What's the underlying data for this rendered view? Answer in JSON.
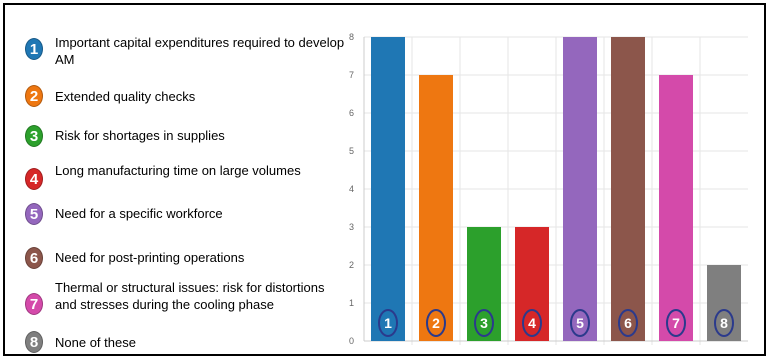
{
  "chart_data": {
    "type": "bar",
    "categories": [
      "1",
      "2",
      "3",
      "4",
      "5",
      "6",
      "7",
      "8"
    ],
    "values": [
      8,
      7,
      3,
      3,
      8,
      8,
      7,
      2
    ],
    "colors": [
      "#1f77b4",
      "#ee7711",
      "#2ca02c",
      "#d62728",
      "#9467bd",
      "#8c564b",
      "#d44aaa",
      "#7f7f7f"
    ],
    "ylim": [
      0,
      8
    ],
    "yticks": [
      "0",
      "1",
      "2",
      "3",
      "4",
      "5",
      "6",
      "7",
      "8"
    ],
    "grid": true,
    "legend": [
      {
        "number": "1",
        "text": "Important capital expenditures required to develop AM"
      },
      {
        "number": "2",
        "text": "Extended quality checks"
      },
      {
        "number": "3",
        "text": "Risk for shortages in supplies"
      },
      {
        "number": "4",
        "text": "Long manufacturing time on large volumes"
      },
      {
        "number": "5",
        "text": "Need for a specific workforce"
      },
      {
        "number": "6",
        "text": "Need for post-printing operations"
      },
      {
        "number": "7",
        "text": "Thermal or structural issues: risk for distortions and stresses during the cooling phase"
      },
      {
        "number": "8",
        "text": "None of these"
      }
    ]
  }
}
